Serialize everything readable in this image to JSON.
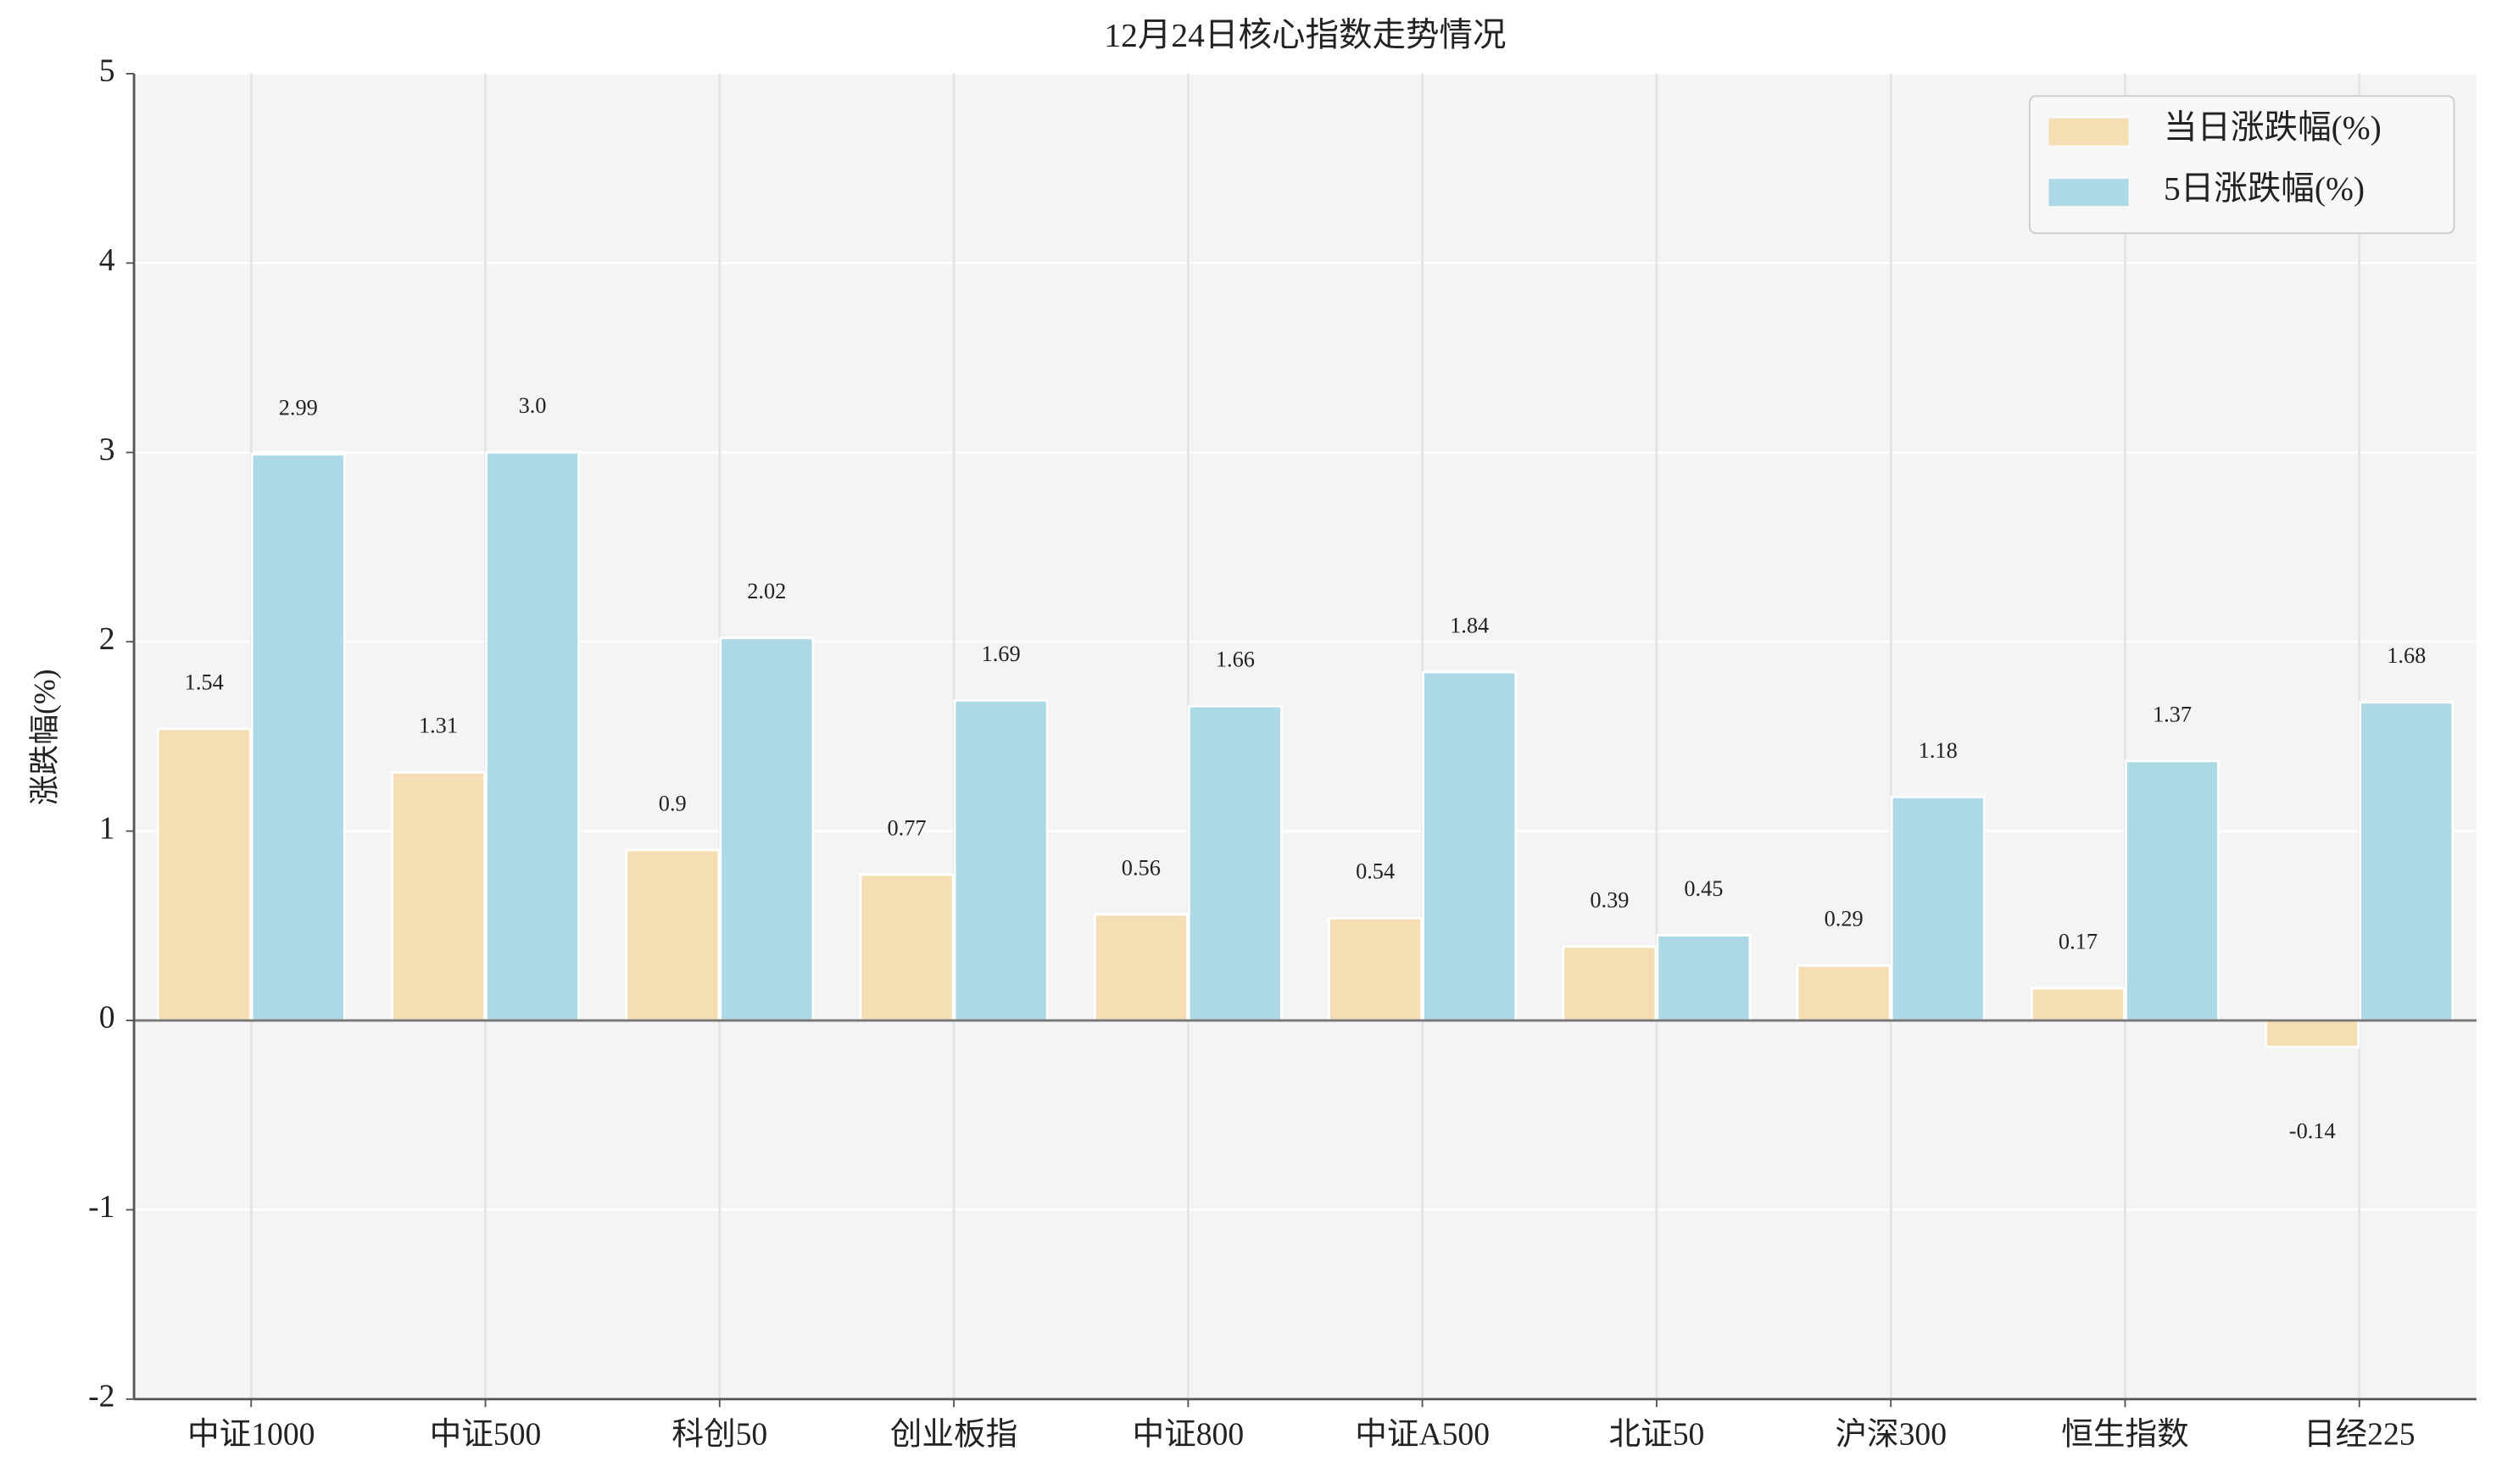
{
  "chart_data": {
    "type": "bar",
    "title": "12月24日核心指数走势情况",
    "y_label": "涨跌幅(%)",
    "categories": [
      "中证1000",
      "中证500",
      "科创50",
      "创业板指",
      "中证800",
      "中证A500",
      "北证50",
      "沪深300",
      "恒生指数",
      "日经225"
    ],
    "series": [
      {
        "name": "当日涨跌幅(%)",
        "color": "#f5deb3",
        "values": [
          1.54,
          1.31,
          0.9,
          0.77,
          0.56,
          0.54,
          0.39,
          0.29,
          0.17,
          -0.14
        ]
      },
      {
        "name": "5日涨跌幅(%)",
        "color": "#add8e6",
        "values": [
          2.99,
          3.0,
          2.02,
          1.69,
          1.66,
          1.84,
          0.45,
          1.18,
          1.37,
          1.68
        ],
        "value_labels": [
          "2.99",
          "3.0",
          "2.02",
          "1.69",
          "1.66",
          "1.84",
          "0.45",
          "1.18",
          "1.37",
          "1.68"
        ]
      }
    ],
    "ylim": [
      -2,
      5
    ],
    "yticks": [
      -2,
      -1,
      0,
      1,
      2,
      3,
      4,
      5
    ],
    "grid": true,
    "legend": "upper right"
  }
}
